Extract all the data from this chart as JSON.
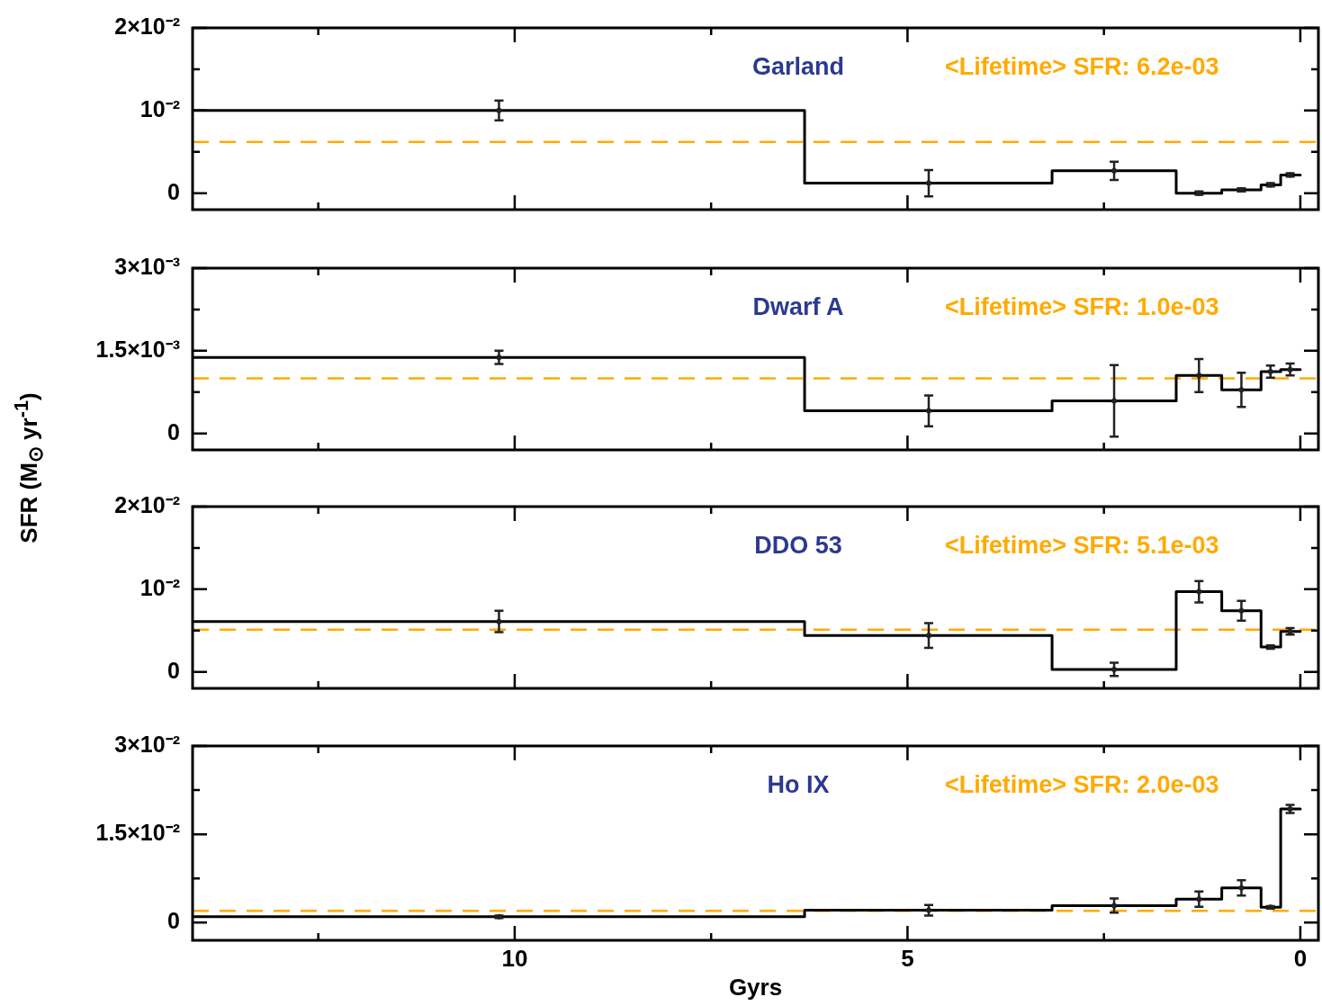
{
  "chart_data": [
    {
      "type": "step",
      "title": "Garland",
      "series": [
        {
          "type": "step",
          "color": "#000000",
          "x": [
            14.1,
            6.31,
            3.16,
            1.58,
            1.0,
            0.5,
            0.25,
            0
          ],
          "values": [
            0.01,
            0.0012,
            0.0027,
            0.0,
            0.0004,
            0.001,
            0.0022,
            0.0022
          ]
        },
        {
          "type": "scatter",
          "color": "#222222",
          "x": [
            10.2,
            4.73,
            2.37,
            1.29,
            0.75,
            0.38,
            0.13
          ],
          "values": [
            0.01,
            0.0012,
            0.0027,
            0.0,
            0.0004,
            0.001,
            0.0022
          ],
          "errors": [
            0.0012,
            0.0016,
            0.0011,
            0.0002,
            0.0002,
            0.0002,
            0.0002
          ]
        }
      ],
      "xlim": [
        14.1,
        -0.23
      ],
      "xticks": [
        {
          "value": 12.5,
          "label": null
        },
        10,
        {
          "value": 7.5,
          "label": null
        },
        5,
        {
          "value": 2.5,
          "label": null
        },
        0
      ],
      "ylim": [
        -0.002,
        0.02
      ],
      "yticks": [
        {
          "value": 0,
          "label": "0"
        },
        {
          "value": 0.005,
          "label": null
        },
        {
          "value": 0.01,
          "label": "10⁻²"
        },
        {
          "value": 0.015,
          "label": null
        },
        {
          "value": 0.02,
          "label": "2×10⁻²"
        }
      ],
      "ref_lines": [
        {
          "axis": "y",
          "value": 0.0062,
          "label": "<Lifetime> SFR: 6.2e-03",
          "color": "#ffaa00",
          "line_style": "dashed"
        }
      ],
      "tick_labels": "y",
      "grid": false,
      "legend": false,
      "line_style": "solid"
    },
    {
      "type": "step",
      "title": "Dwarf A",
      "ylabel": "SFR (M$_{⊙}$ yr$^{-1}$)",
      "series": [
        {
          "type": "step",
          "color": "#000000",
          "x": [
            14.1,
            6.31,
            3.16,
            1.58,
            1.0,
            0.5,
            0.25,
            0
          ],
          "values": [
            0.00138,
            0.00041,
            0.00059,
            0.00105,
            0.00079,
            0.00112,
            0.00116,
            0.00116
          ]
        },
        {
          "type": "scatter",
          "color": "#222222",
          "x": [
            10.2,
            4.73,
            2.37,
            1.29,
            0.75,
            0.38,
            0.13
          ],
          "values": [
            0.00138,
            0.00041,
            0.00059,
            0.00105,
            0.00079,
            0.00112,
            0.00116
          ],
          "errors": [
            0.00012,
            0.00028,
            0.00065,
            0.0003,
            0.00031,
            0.00011,
            0.00011
          ]
        }
      ],
      "xlim": [
        14.1,
        -0.23
      ],
      "xticks": [
        {
          "value": 12.5,
          "label": null
        },
        10,
        {
          "value": 7.5,
          "label": null
        },
        5,
        {
          "value": 2.5,
          "label": null
        },
        0
      ],
      "ylim": [
        -0.0003,
        0.003
      ],
      "yticks": [
        {
          "value": 0,
          "label": "0"
        },
        {
          "value": 0.00075,
          "label": null
        },
        {
          "value": 0.0015,
          "label": "1.5×10⁻³"
        },
        {
          "value": 0.00225,
          "label": null
        },
        {
          "value": 0.003,
          "label": "3×10⁻³"
        }
      ],
      "ref_lines": [
        {
          "axis": "y",
          "value": 0.001,
          "label": "<Lifetime> SFR: 1.0e-03",
          "color": "#ffaa00",
          "line_style": "dashed"
        }
      ],
      "tick_labels": "y",
      "grid": false,
      "legend": false,
      "line_style": "solid"
    },
    {
      "type": "step",
      "title": "DDO 53",
      "series": [
        {
          "type": "step",
          "color": "#000000",
          "x": [
            14.1,
            6.31,
            3.16,
            1.58,
            1.0,
            0.5,
            0.25,
            0
          ],
          "values": [
            0.0061,
            0.0044,
            0.0003,
            0.0097,
            0.0074,
            0.003,
            0.0049,
            0.0049
          ]
        },
        {
          "type": "scatter",
          "color": "#222222",
          "x": [
            10.2,
            4.73,
            2.37,
            1.29,
            0.75,
            0.38,
            0.13
          ],
          "values": [
            0.0061,
            0.0044,
            0.0003,
            0.0097,
            0.0074,
            0.003,
            0.0049
          ],
          "errors": [
            0.0013,
            0.0015,
            0.0008,
            0.0013,
            0.0012,
            0.0002,
            0.0004
          ]
        }
      ],
      "xlim": [
        14.1,
        -0.23
      ],
      "xticks": [
        {
          "value": 12.5,
          "label": null
        },
        10,
        {
          "value": 7.5,
          "label": null
        },
        5,
        {
          "value": 2.5,
          "label": null
        },
        0
      ],
      "ylim": [
        -0.002,
        0.02
      ],
      "yticks": [
        {
          "value": 0,
          "label": "0"
        },
        {
          "value": 0.005,
          "label": null
        },
        {
          "value": 0.01,
          "label": "10⁻²"
        },
        {
          "value": 0.015,
          "label": null
        },
        {
          "value": 0.02,
          "label": "2×10⁻²"
        }
      ],
      "ref_lines": [
        {
          "axis": "y",
          "value": 0.0051,
          "label": "<Lifetime> SFR: 5.1e-03",
          "color": "#ffaa00",
          "line_style": "dashed"
        }
      ],
      "tick_labels": "y",
      "grid": false,
      "legend": false,
      "line_style": "solid"
    },
    {
      "type": "step",
      "title": "Ho IX",
      "xlabel": "Gyrs",
      "series": [
        {
          "type": "step",
          "color": "#000000",
          "x": [
            14.1,
            6.31,
            3.16,
            1.58,
            1.0,
            0.5,
            0.25,
            0
          ],
          "values": [
            0.001,
            0.0021,
            0.0029,
            0.004,
            0.0059,
            0.0026,
            0.0193,
            0.0193
          ]
        },
        {
          "type": "scatter",
          "color": "#222222",
          "x": [
            10.2,
            4.73,
            2.37,
            1.29,
            0.75,
            0.38,
            0.13
          ],
          "values": [
            0.001,
            0.0021,
            0.0029,
            0.004,
            0.0059,
            0.0026,
            0.0193
          ],
          "errors": [
            0.0002,
            0.0009,
            0.0012,
            0.0013,
            0.0013,
            0.0002,
            0.0007
          ]
        }
      ],
      "xlim": [
        14.1,
        -0.23
      ],
      "xticks": [
        {
          "value": 12.5,
          "label": null
        },
        10,
        {
          "value": 7.5,
          "label": null
        },
        5,
        {
          "value": 2.5,
          "label": null
        },
        0
      ],
      "ylim": [
        -0.003,
        0.03
      ],
      "yticks": [
        {
          "value": 0,
          "label": "0"
        },
        {
          "value": 0.0075,
          "label": null
        },
        {
          "value": 0.015,
          "label": "1.5×10⁻²"
        },
        {
          "value": 0.0225,
          "label": null
        },
        {
          "value": 0.03,
          "label": "3×10⁻²"
        }
      ],
      "ref_lines": [
        {
          "axis": "y",
          "value": 0.002,
          "label": "<Lifetime> SFR: 2.0e-03",
          "color": "#ffaa00",
          "line_style": "dashed"
        }
      ],
      "grid": false,
      "legend": false,
      "line_style": "solid"
    }
  ]
}
